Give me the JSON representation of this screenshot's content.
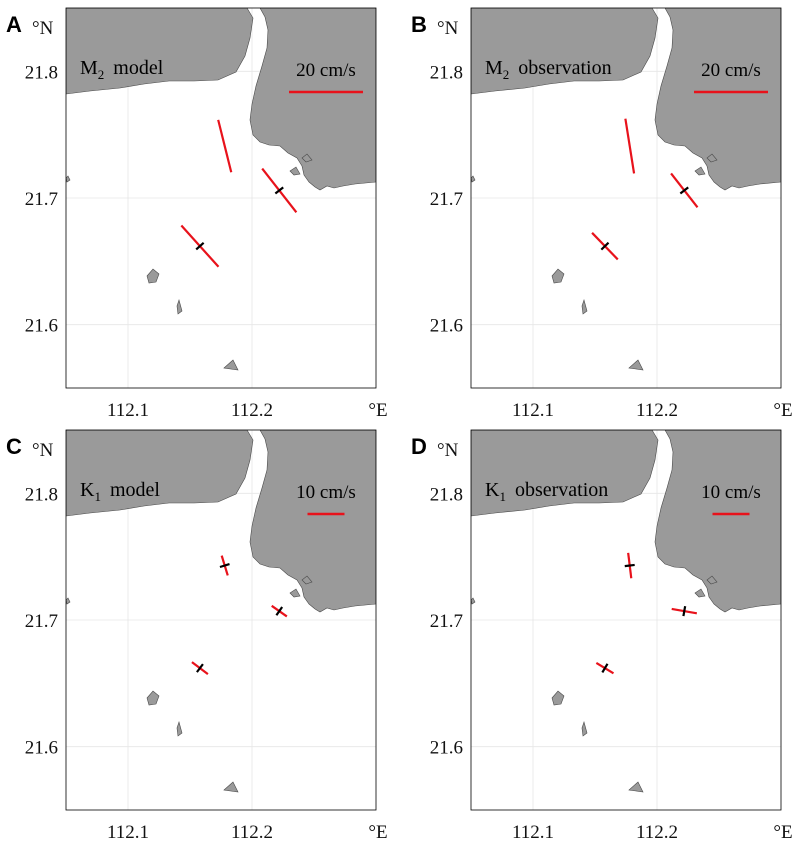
{
  "figure": {
    "lon_range": [
      112.05,
      112.3
    ],
    "lat_range": [
      21.55,
      21.85
    ],
    "lon_ticks": [
      "112.1",
      "112.2"
    ],
    "lat_ticks": [
      "21.8",
      "21.7",
      "21.6"
    ],
    "lon_unit": "°E",
    "lat_unit": "°N",
    "colors": {
      "ellipse_major": "#e8121b",
      "ellipse_minor": "#000000",
      "land": "#9a9a9a",
      "grid": "#e6e6e6"
    }
  },
  "panels": [
    {
      "letter": "A",
      "constituent": "M",
      "subscript": "2",
      "label": "model",
      "scale_text": "20 cm/s",
      "scale_value_cms": 20,
      "stations": [
        {
          "lon": 112.178,
          "lat": 21.741,
          "major_cms": 14.6,
          "minor_cms": 0.0,
          "angle_deg": -76
        },
        {
          "lon": 112.222,
          "lat": 21.706,
          "major_cms": 15.0,
          "minor_cms": 0.6,
          "angle_deg": -52
        },
        {
          "lon": 112.158,
          "lat": 21.662,
          "major_cms": 15.0,
          "minor_cms": 0.6,
          "angle_deg": -48
        }
      ]
    },
    {
      "letter": "B",
      "constituent": "M",
      "subscript": "2",
      "label": "observation",
      "scale_text": "20 cm/s",
      "scale_value_cms": 20,
      "stations": [
        {
          "lon": 112.178,
          "lat": 21.741,
          "major_cms": 15.0,
          "minor_cms": 0.0,
          "angle_deg": -81
        },
        {
          "lon": 112.222,
          "lat": 21.706,
          "major_cms": 11.6,
          "minor_cms": 0.6,
          "angle_deg": -52
        },
        {
          "lon": 112.158,
          "lat": 21.662,
          "major_cms": 10.0,
          "minor_cms": 0.6,
          "angle_deg": -46
        }
      ]
    },
    {
      "letter": "C",
      "constituent": "K",
      "subscript": "1",
      "label": "model",
      "scale_text": "10 cm/s",
      "scale_value_cms": 10,
      "stations": [
        {
          "lon": 112.178,
          "lat": 21.743,
          "major_cms": 5.6,
          "minor_cms": 0.3,
          "angle_deg": -73
        },
        {
          "lon": 112.222,
          "lat": 21.707,
          "major_cms": 5.0,
          "minor_cms": 0.3,
          "angle_deg": -35
        },
        {
          "lon": 112.158,
          "lat": 21.662,
          "major_cms": 5.4,
          "minor_cms": 0.5,
          "angle_deg": -37
        }
      ]
    },
    {
      "letter": "D",
      "constituent": "K",
      "subscript": "1",
      "label": "observation",
      "scale_text": "10 cm/s",
      "scale_value_cms": 10,
      "stations": [
        {
          "lon": 112.178,
          "lat": 21.743,
          "major_cms": 6.9,
          "minor_cms": 0.5,
          "angle_deg": -83
        },
        {
          "lon": 112.222,
          "lat": 21.707,
          "major_cms": 6.9,
          "minor_cms": 0.5,
          "angle_deg": -10
        },
        {
          "lon": 112.158,
          "lat": 21.662,
          "major_cms": 5.4,
          "minor_cms": 0.6,
          "angle_deg": -31
        }
      ]
    }
  ]
}
